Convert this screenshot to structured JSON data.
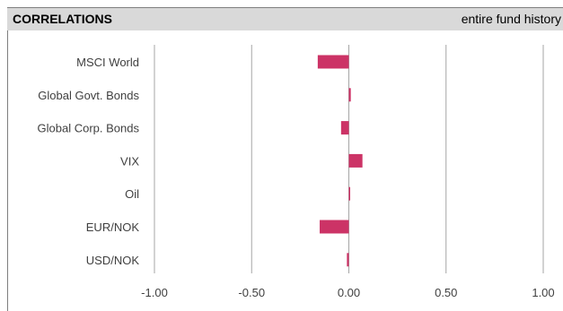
{
  "header": {
    "title": "CORRELATIONS",
    "subtitle": "entire fund history"
  },
  "colors": {
    "bar": "#cc3366",
    "grid": "#a6a6a6",
    "header_bg": "#d9d9d9"
  },
  "chart_data": {
    "type": "bar",
    "orientation": "horizontal",
    "categories": [
      "MSCI World",
      "Global Govt. Bonds",
      "Global Corp. Bonds",
      "VIX",
      "Oil",
      "EUR/NOK",
      "USD/NOK"
    ],
    "values": [
      -0.16,
      0.01,
      -0.04,
      0.07,
      0.005,
      -0.15,
      -0.01
    ],
    "xlim": [
      -1.0,
      1.0
    ],
    "xticks": [
      -1.0,
      -0.5,
      0.0,
      0.5,
      1.0
    ],
    "xtick_labels": [
      "-1.00",
      "-0.50",
      "0.00",
      "0.50",
      "1.00"
    ],
    "grid": true,
    "legend": "none"
  }
}
